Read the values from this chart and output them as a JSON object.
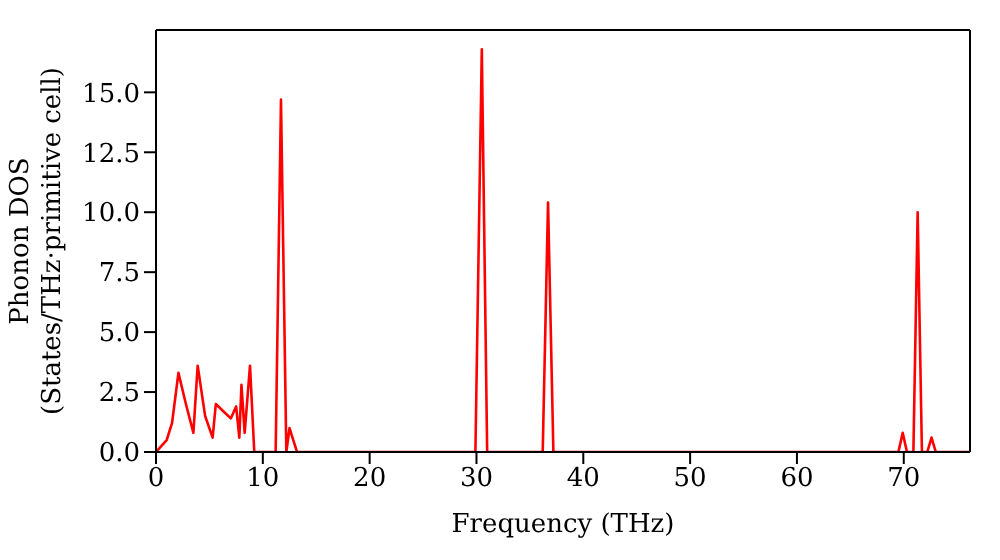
{
  "chart_data": {
    "type": "line",
    "xlabel": "Frequency (THz)",
    "ylabel": "Phonon DOS\n(States/THz·primitive cell)",
    "x": [
      0,
      1,
      1.5,
      2.1,
      2.8,
      3.5,
      3.9,
      4.6,
      5.3,
      5.6,
      6.3,
      7.0,
      7.5,
      7.8,
      8.0,
      8.3,
      8.8,
      9.2,
      11.2,
      11.7,
      12.2,
      12.5,
      13.2,
      29.9,
      30.5,
      31.0,
      36.2,
      36.7,
      37.2,
      69.5,
      69.9,
      70.3,
      70.9,
      71.3,
      71.7,
      72.2,
      72.6,
      73.0,
      76.2
    ],
    "series": [
      {
        "color": "#ff0000",
        "values": [
          0,
          0.5,
          1.2,
          3.3,
          2.0,
          0.8,
          3.6,
          1.5,
          0.6,
          2.0,
          1.7,
          1.4,
          1.9,
          0.6,
          2.8,
          0.8,
          3.6,
          0,
          0,
          14.7,
          0,
          1.0,
          0,
          0,
          16.8,
          0,
          0,
          10.4,
          0,
          0,
          0.8,
          0,
          0,
          10.0,
          0,
          0,
          0.6,
          0,
          0
        ]
      }
    ],
    "xlim": [
      0,
      76.2
    ],
    "xticks": [
      0,
      10,
      20,
      30,
      40,
      50,
      60,
      70
    ],
    "ylim": [
      0,
      17.6
    ],
    "yticks": [
      {
        "value": 0,
        "label": "0.0"
      },
      {
        "value": 2.5,
        "label": "2.5"
      },
      {
        "value": 5,
        "label": "5.0"
      },
      {
        "value": 7.5,
        "label": "7.5"
      },
      {
        "value": 10,
        "label": "10.0"
      },
      {
        "value": 12.5,
        "label": "12.5"
      },
      {
        "value": 15,
        "label": "15.0"
      }
    ],
    "grid": false,
    "legend": false,
    "line_style": "solid",
    "marker": "none"
  }
}
